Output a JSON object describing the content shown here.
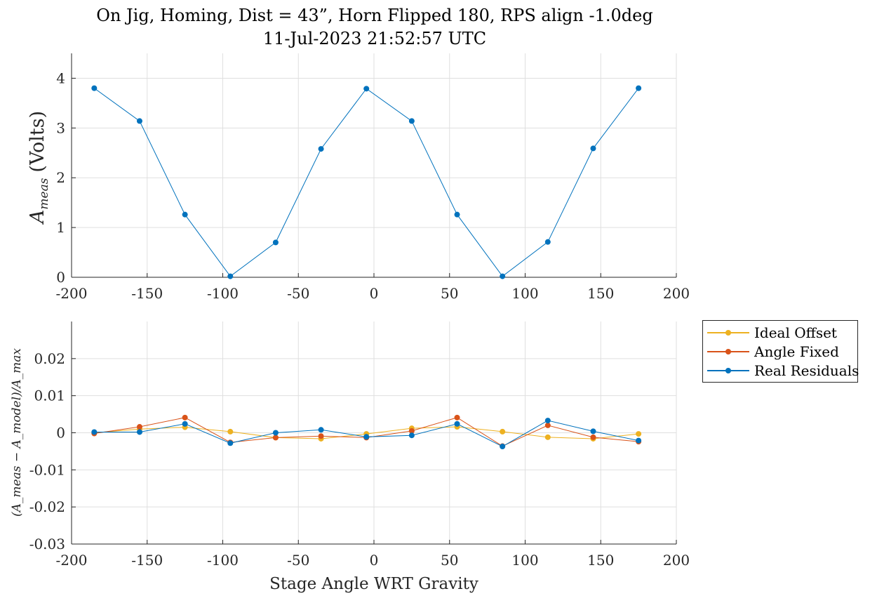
{
  "title_line1": "On Jig, Homing, Dist = 43”, Horn Flipped 180, RPS align -1.0deg",
  "title_line2": "11-Jul-2023 21:52:57 UTC",
  "colors": {
    "ideal": "#EDB120",
    "angle": "#D95319",
    "real": "#0072BD"
  },
  "chart_data": [
    {
      "type": "line",
      "ylabel_main": "A",
      "ylabel_sub": "meas",
      "ylabel_suffix": "(Volts)",
      "xlabel": "",
      "xlim": [
        -200,
        200
      ],
      "ylim": [
        0,
        4.5
      ],
      "xticks": [
        "-200",
        "-150",
        "-100",
        "-50",
        "0",
        "50",
        "100",
        "150",
        "200"
      ],
      "yticks": [
        "0",
        "1",
        "2",
        "3",
        "4"
      ],
      "grid": true,
      "x": [
        -185,
        -155,
        -125,
        -95,
        -65,
        -35,
        -5,
        25,
        55,
        85,
        115,
        145,
        175
      ],
      "series": [
        {
          "values": [
            3.8,
            3.14,
            1.26,
            0.02,
            0.7,
            2.58,
            3.79,
            3.14,
            1.26,
            0.02,
            0.71,
            2.59,
            3.8
          ]
        }
      ]
    },
    {
      "type": "line",
      "ylabel": "(A_meas − A_model)/A_max",
      "xlabel": "Stage Angle WRT Gravity",
      "xlim": [
        -200,
        200
      ],
      "ylim": [
        -0.03,
        0.03
      ],
      "xticks": [
        "-200",
        "-150",
        "-100",
        "-50",
        "0",
        "50",
        "100",
        "150",
        "200"
      ],
      "yticks": [
        "-0.03",
        "-0.02",
        "-0.01",
        "0",
        "0.01",
        "0.02"
      ],
      "grid": true,
      "legend": "outside-right-top",
      "x": [
        -185,
        -155,
        -125,
        -95,
        -65,
        -35,
        -5,
        25,
        55,
        85,
        115,
        145,
        175
      ],
      "series": [
        {
          "name": "Ideal Offset",
          "values": [
            0.0,
            0.001,
            0.0015,
            0.0003,
            -0.0013,
            -0.0016,
            -0.0003,
            0.0012,
            0.0016,
            0.0003,
            -0.0012,
            -0.0016,
            -0.0003
          ]
        },
        {
          "name": "Angle Fixed",
          "values": [
            -0.0002,
            0.0016,
            0.0041,
            -0.0026,
            -0.0013,
            -0.0009,
            -0.0013,
            0.0005,
            0.0041,
            -0.0036,
            0.002,
            -0.0012,
            -0.0024
          ]
        },
        {
          "name": "Real Residuals",
          "values": [
            0.0002,
            0.0002,
            0.0024,
            -0.0028,
            0.0,
            0.0008,
            -0.0011,
            -0.0007,
            0.0024,
            -0.0037,
            0.0033,
            0.0004,
            -0.0021
          ]
        }
      ]
    }
  ]
}
